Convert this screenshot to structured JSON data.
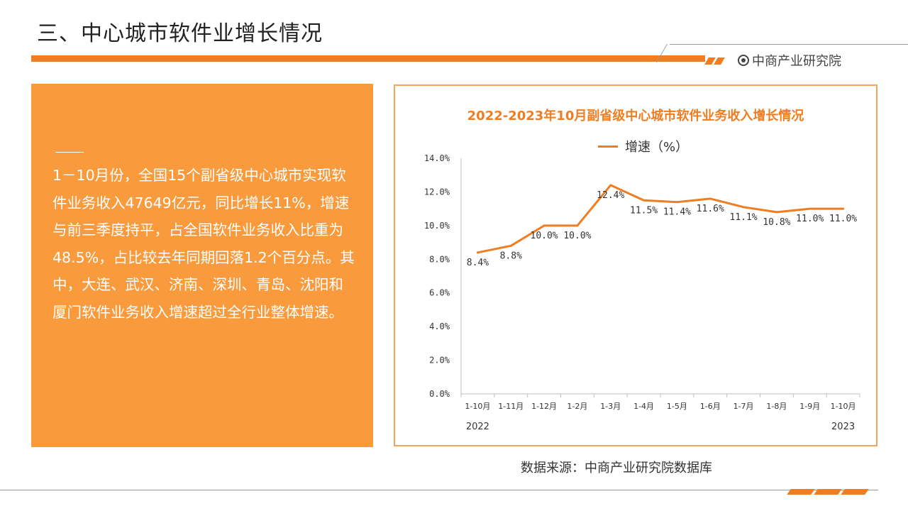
{
  "page": {
    "title": "三、中心城市软件业增长情况",
    "brand": "中商产业研究院",
    "source": "数据来源：中商产业研究院数据库"
  },
  "panel": {
    "text": "1－10月份，全国15个副省级中心城市实现软件业务收入47649亿元，同比增长11%，增速与前三季度持平，占全国软件业务收入比重为48.5%，占比较去年同期回落1.2个百分点。其中，大连、武汉、济南、深圳、青岛、沈阳和厦门软件业务收入增速超过全行业整体增速。"
  },
  "colors": {
    "accent": "#ef7d22",
    "panel_bg": "#f99a3c",
    "frame": "#f5a25a"
  },
  "chart_data": {
    "type": "line",
    "title": "2022-2023年10月副省级中心城市软件业务收入增长情况",
    "categories": [
      "1-10月",
      "1-11月",
      "1-12月",
      "1-2月",
      "1-3月",
      "1-4月",
      "1-5月",
      "1-6月",
      "1-7月",
      "1-8月",
      "1-9月",
      "1-10月"
    ],
    "year_labels": [
      {
        "text": "2022",
        "index": 0
      },
      {
        "text": "2023",
        "index": 11
      }
    ],
    "series": [
      {
        "name": "增速（%）",
        "values": [
          8.4,
          8.8,
          10.0,
          10.0,
          12.4,
          11.5,
          11.4,
          11.6,
          11.1,
          10.8,
          11.0,
          11.0
        ],
        "labels": [
          "8.4%",
          "8.8%",
          "10.0%",
          "10.0%",
          "12.4%",
          "11.5%",
          "11.4%",
          "11.6%",
          "11.1%",
          "10.8%",
          "11.0%",
          "11.0%"
        ]
      }
    ],
    "ylim": [
      0,
      14
    ],
    "yticks": [
      0,
      2,
      4,
      6,
      8,
      10,
      12,
      14
    ],
    "ytick_labels": [
      "0.0%",
      "2.0%",
      "4.0%",
      "6.0%",
      "8.0%",
      "10.0%",
      "12.0%",
      "14.0%"
    ],
    "grid": false,
    "legend": "top-center"
  }
}
